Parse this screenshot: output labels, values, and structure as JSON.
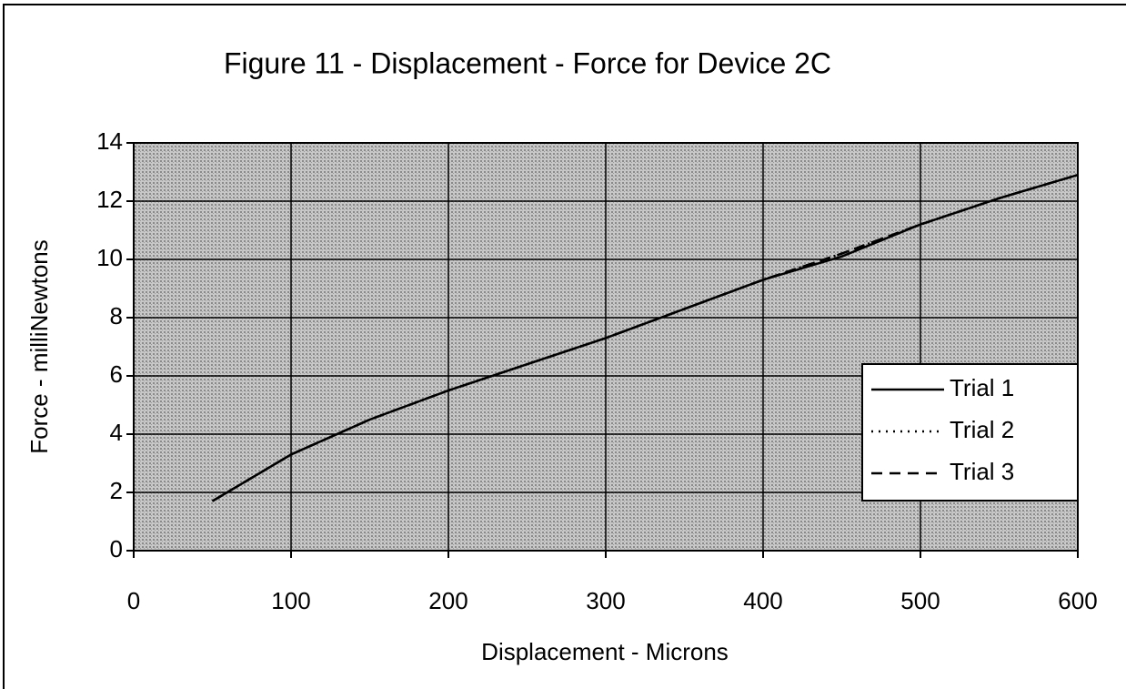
{
  "chart_data": {
    "type": "line",
    "title": "Figure 11 - Displacement - Force for Device 2C",
    "xlabel": "Displacement - Microns",
    "ylabel": "Force - milliNewtons",
    "x": [
      50,
      100,
      150,
      200,
      250,
      300,
      350,
      400,
      450,
      500,
      550,
      600
    ],
    "series": [
      {
        "name": "Trial 1",
        "color": "#000000",
        "dash": "solid",
        "values": [
          1.7,
          3.3,
          4.5,
          5.5,
          6.4,
          7.3,
          8.3,
          9.3,
          10.1,
          11.2,
          12.1,
          12.9
        ]
      },
      {
        "name": "Trial 2",
        "color": "#000000",
        "dash": "dotted",
        "values": [
          1.7,
          3.3,
          4.5,
          5.5,
          6.4,
          7.3,
          8.3,
          9.3,
          10.2,
          11.2,
          12.1,
          12.9
        ]
      },
      {
        "name": "Trial 3",
        "color": "#000000",
        "dash": "dashed",
        "values": [
          1.7,
          3.3,
          4.5,
          5.5,
          6.4,
          7.3,
          8.3,
          9.3,
          10.2,
          11.2,
          12.1,
          12.9
        ]
      }
    ],
    "xlim": [
      0,
      600
    ],
    "xticks": [
      0,
      100,
      200,
      300,
      400,
      500,
      600
    ],
    "ylim": [
      0,
      14
    ],
    "yticks": [
      0,
      2,
      4,
      6,
      8,
      10,
      12,
      14
    ],
    "grid": true,
    "legend": "right"
  }
}
